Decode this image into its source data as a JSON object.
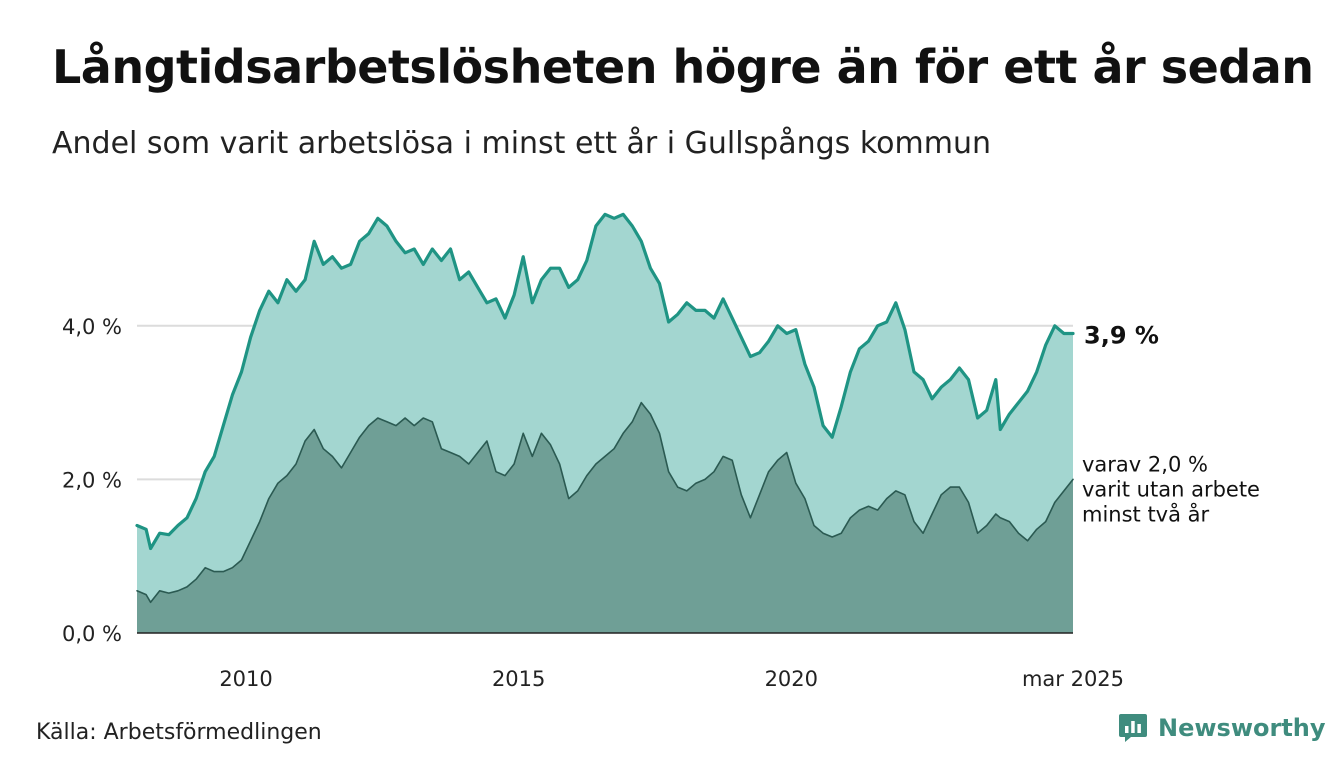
{
  "header": {
    "title": "Långtidsarbetslösheten högre än för ett år sedan",
    "subtitle": "Andel som varit arbetslösa i minst ett år i Gullspångs kommun"
  },
  "footer": {
    "source": "Källa: Arbetsförmedlingen",
    "brand": "Newsworthy",
    "brand_icon": "newsworthy-logo-icon"
  },
  "colors": {
    "total_line": "#1f9484",
    "total_fill": "#a3d6d0",
    "longterm_line": "#2b5a52",
    "longterm_fill": "#6f9f96",
    "grid": "#dcdcdc",
    "axis": "#222222",
    "brand": "#3f8c7e"
  },
  "chart_data": {
    "type": "area",
    "title": "Långtidsarbetslösheten högre än för ett år sedan",
    "subtitle": "Andel som varit arbetslösa i minst ett år i Gullspångs kommun",
    "unit": "%",
    "x_range": [
      "2008-01",
      "2025-03"
    ],
    "ylim": [
      0,
      5.5
    ],
    "y_ticks": [
      0,
      2,
      4
    ],
    "y_tick_labels": [
      "0,0 %",
      "2,0 %",
      "4,0 %"
    ],
    "x_ticks": [
      "2010-01",
      "2015-01",
      "2020-01",
      "2025-03"
    ],
    "x_tick_labels": [
      "2010",
      "2015",
      "2020",
      "mar 2025"
    ],
    "grid": true,
    "legend": "none",
    "series": [
      {
        "key": "total",
        "points": [
          [
            "2008-01",
            1.4
          ],
          [
            "2008-03",
            1.35
          ],
          [
            "2008-04",
            1.1
          ],
          [
            "2008-06",
            1.3
          ],
          [
            "2008-08",
            1.28
          ],
          [
            "2008-10",
            1.4
          ],
          [
            "2008-12",
            1.5
          ],
          [
            "2009-02",
            1.75
          ],
          [
            "2009-04",
            2.1
          ],
          [
            "2009-06",
            2.3
          ],
          [
            "2009-08",
            2.7
          ],
          [
            "2009-10",
            3.1
          ],
          [
            "2009-12",
            3.4
          ],
          [
            "2010-02",
            3.85
          ],
          [
            "2010-04",
            4.2
          ],
          [
            "2010-06",
            4.45
          ],
          [
            "2010-08",
            4.3
          ],
          [
            "2010-10",
            4.6
          ],
          [
            "2010-12",
            4.45
          ],
          [
            "2011-02",
            4.6
          ],
          [
            "2011-04",
            5.1
          ],
          [
            "2011-06",
            4.8
          ],
          [
            "2011-08",
            4.9
          ],
          [
            "2011-10",
            4.75
          ],
          [
            "2011-12",
            4.8
          ],
          [
            "2012-02",
            5.1
          ],
          [
            "2012-04",
            5.2
          ],
          [
            "2012-06",
            5.4
          ],
          [
            "2012-08",
            5.3
          ],
          [
            "2012-10",
            5.1
          ],
          [
            "2012-12",
            4.95
          ],
          [
            "2013-02",
            5.0
          ],
          [
            "2013-04",
            4.8
          ],
          [
            "2013-06",
            5.0
          ],
          [
            "2013-08",
            4.85
          ],
          [
            "2013-10",
            5.0
          ],
          [
            "2013-12",
            4.6
          ],
          [
            "2014-02",
            4.7
          ],
          [
            "2014-04",
            4.5
          ],
          [
            "2014-06",
            4.3
          ],
          [
            "2014-08",
            4.35
          ],
          [
            "2014-10",
            4.1
          ],
          [
            "2014-12",
            4.4
          ],
          [
            "2015-02",
            4.9
          ],
          [
            "2015-04",
            4.3
          ],
          [
            "2015-06",
            4.6
          ],
          [
            "2015-08",
            4.75
          ],
          [
            "2015-10",
            4.75
          ],
          [
            "2015-12",
            4.5
          ],
          [
            "2016-02",
            4.6
          ],
          [
            "2016-04",
            4.85
          ],
          [
            "2016-06",
            5.3
          ],
          [
            "2016-08",
            5.45
          ],
          [
            "2016-10",
            5.4
          ],
          [
            "2016-12",
            5.45
          ],
          [
            "2017-02",
            5.3
          ],
          [
            "2017-04",
            5.1
          ],
          [
            "2017-06",
            4.75
          ],
          [
            "2017-08",
            4.55
          ],
          [
            "2017-10",
            4.05
          ],
          [
            "2017-12",
            4.15
          ],
          [
            "2018-02",
            4.3
          ],
          [
            "2018-04",
            4.2
          ],
          [
            "2018-06",
            4.2
          ],
          [
            "2018-08",
            4.1
          ],
          [
            "2018-10",
            4.35
          ],
          [
            "2018-12",
            4.1
          ],
          [
            "2019-02",
            3.85
          ],
          [
            "2019-04",
            3.6
          ],
          [
            "2019-06",
            3.65
          ],
          [
            "2019-08",
            3.8
          ],
          [
            "2019-10",
            4.0
          ],
          [
            "2019-12",
            3.9
          ],
          [
            "2020-02",
            3.95
          ],
          [
            "2020-04",
            3.5
          ],
          [
            "2020-06",
            3.2
          ],
          [
            "2020-08",
            2.7
          ],
          [
            "2020-10",
            2.55
          ],
          [
            "2020-12",
            2.95
          ],
          [
            "2021-02",
            3.4
          ],
          [
            "2021-04",
            3.7
          ],
          [
            "2021-06",
            3.8
          ],
          [
            "2021-08",
            4.0
          ],
          [
            "2021-10",
            4.05
          ],
          [
            "2021-12",
            4.3
          ],
          [
            "2022-02",
            3.95
          ],
          [
            "2022-04",
            3.4
          ],
          [
            "2022-06",
            3.3
          ],
          [
            "2022-08",
            3.05
          ],
          [
            "2022-10",
            3.2
          ],
          [
            "2022-12",
            3.3
          ],
          [
            "2023-02",
            3.45
          ],
          [
            "2023-04",
            3.3
          ],
          [
            "2023-06",
            2.8
          ],
          [
            "2023-08",
            2.9
          ],
          [
            "2023-10",
            3.3
          ],
          [
            "2023-11",
            2.65
          ],
          [
            "2024-01",
            2.85
          ],
          [
            "2024-03",
            3.0
          ],
          [
            "2024-05",
            3.15
          ],
          [
            "2024-07",
            3.4
          ],
          [
            "2024-09",
            3.75
          ],
          [
            "2024-11",
            4.0
          ],
          [
            "2025-01",
            3.9
          ],
          [
            "2025-03",
            3.9
          ]
        ],
        "end_label": "3,9 %"
      },
      {
        "key": "longterm",
        "points": [
          [
            "2008-01",
            0.55
          ],
          [
            "2008-03",
            0.5
          ],
          [
            "2008-04",
            0.4
          ],
          [
            "2008-06",
            0.55
          ],
          [
            "2008-08",
            0.52
          ],
          [
            "2008-10",
            0.55
          ],
          [
            "2008-12",
            0.6
          ],
          [
            "2009-02",
            0.7
          ],
          [
            "2009-04",
            0.85
          ],
          [
            "2009-06",
            0.8
          ],
          [
            "2009-08",
            0.8
          ],
          [
            "2009-10",
            0.85
          ],
          [
            "2009-12",
            0.95
          ],
          [
            "2010-02",
            1.2
          ],
          [
            "2010-04",
            1.45
          ],
          [
            "2010-06",
            1.75
          ],
          [
            "2010-08",
            1.95
          ],
          [
            "2010-10",
            2.05
          ],
          [
            "2010-12",
            2.2
          ],
          [
            "2011-02",
            2.5
          ],
          [
            "2011-04",
            2.65
          ],
          [
            "2011-06",
            2.4
          ],
          [
            "2011-08",
            2.3
          ],
          [
            "2011-10",
            2.15
          ],
          [
            "2011-12",
            2.35
          ],
          [
            "2012-02",
            2.55
          ],
          [
            "2012-04",
            2.7
          ],
          [
            "2012-06",
            2.8
          ],
          [
            "2012-08",
            2.75
          ],
          [
            "2012-10",
            2.7
          ],
          [
            "2012-12",
            2.8
          ],
          [
            "2013-02",
            2.7
          ],
          [
            "2013-04",
            2.8
          ],
          [
            "2013-06",
            2.75
          ],
          [
            "2013-08",
            2.4
          ],
          [
            "2013-10",
            2.35
          ],
          [
            "2013-12",
            2.3
          ],
          [
            "2014-02",
            2.2
          ],
          [
            "2014-04",
            2.35
          ],
          [
            "2014-06",
            2.5
          ],
          [
            "2014-08",
            2.1
          ],
          [
            "2014-10",
            2.05
          ],
          [
            "2014-12",
            2.2
          ],
          [
            "2015-02",
            2.6
          ],
          [
            "2015-04",
            2.3
          ],
          [
            "2015-06",
            2.6
          ],
          [
            "2015-08",
            2.45
          ],
          [
            "2015-10",
            2.2
          ],
          [
            "2015-12",
            1.75
          ],
          [
            "2016-02",
            1.85
          ],
          [
            "2016-04",
            2.05
          ],
          [
            "2016-06",
            2.2
          ],
          [
            "2016-08",
            2.3
          ],
          [
            "2016-10",
            2.4
          ],
          [
            "2016-12",
            2.6
          ],
          [
            "2017-02",
            2.75
          ],
          [
            "2017-04",
            3.0
          ],
          [
            "2017-06",
            2.85
          ],
          [
            "2017-08",
            2.6
          ],
          [
            "2017-10",
            2.1
          ],
          [
            "2017-12",
            1.9
          ],
          [
            "2018-02",
            1.85
          ],
          [
            "2018-04",
            1.95
          ],
          [
            "2018-06",
            2.0
          ],
          [
            "2018-08",
            2.1
          ],
          [
            "2018-10",
            2.3
          ],
          [
            "2018-12",
            2.25
          ],
          [
            "2019-02",
            1.8
          ],
          [
            "2019-04",
            1.5
          ],
          [
            "2019-06",
            1.8
          ],
          [
            "2019-08",
            2.1
          ],
          [
            "2019-10",
            2.25
          ],
          [
            "2019-12",
            2.35
          ],
          [
            "2020-02",
            1.95
          ],
          [
            "2020-04",
            1.75
          ],
          [
            "2020-06",
            1.4
          ],
          [
            "2020-08",
            1.3
          ],
          [
            "2020-10",
            1.25
          ],
          [
            "2020-12",
            1.3
          ],
          [
            "2021-02",
            1.5
          ],
          [
            "2021-04",
            1.6
          ],
          [
            "2021-06",
            1.65
          ],
          [
            "2021-08",
            1.6
          ],
          [
            "2021-10",
            1.75
          ],
          [
            "2021-12",
            1.85
          ],
          [
            "2022-02",
            1.8
          ],
          [
            "2022-04",
            1.45
          ],
          [
            "2022-06",
            1.3
          ],
          [
            "2022-08",
            1.55
          ],
          [
            "2022-10",
            1.8
          ],
          [
            "2022-12",
            1.9
          ],
          [
            "2023-02",
            1.9
          ],
          [
            "2023-04",
            1.7
          ],
          [
            "2023-06",
            1.3
          ],
          [
            "2023-08",
            1.4
          ],
          [
            "2023-10",
            1.55
          ],
          [
            "2023-11",
            1.5
          ],
          [
            "2024-01",
            1.45
          ],
          [
            "2024-03",
            1.3
          ],
          [
            "2024-05",
            1.2
          ],
          [
            "2024-07",
            1.35
          ],
          [
            "2024-09",
            1.45
          ],
          [
            "2024-11",
            1.7
          ],
          [
            "2025-01",
            1.85
          ],
          [
            "2025-03",
            2.0
          ]
        ],
        "end_label": "varav 2,0 %",
        "end_label_lines": [
          "varav 2,0 %",
          "varit utan arbete",
          "minst två år"
        ]
      }
    ]
  }
}
